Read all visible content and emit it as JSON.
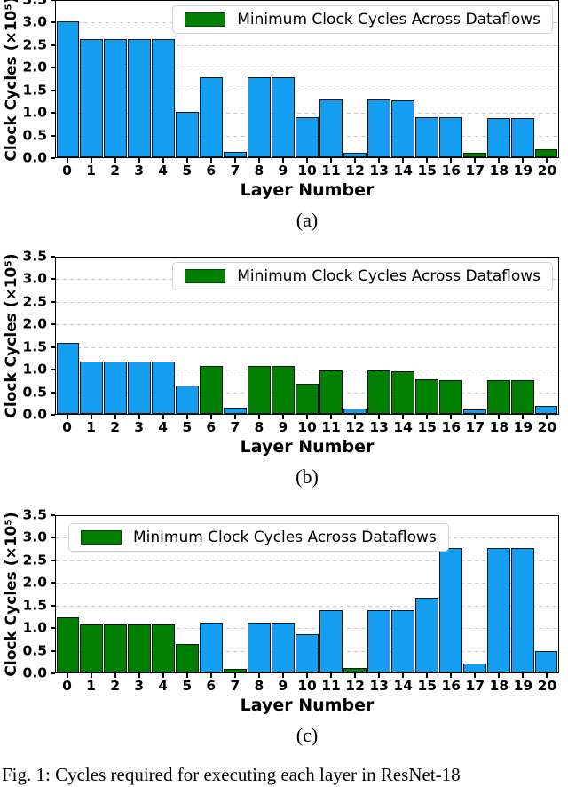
{
  "figure": {
    "caption": "Fig. 1: Cycles required for executing each layer in ResNet-18",
    "ylabel": "Clock Cycles (×10⁵)",
    "xlabel": "Layer Number",
    "legend_label": "Minimum Clock Cycles Across Dataflows",
    "yticks": [
      "3.5",
      "3.0",
      "2.5",
      "2.0",
      "1.5",
      "1.0",
      "0.5",
      "0.0"
    ],
    "colors": {
      "bar_blue": "#149ef2",
      "bar_green": "#008000",
      "bar_edge": "#141414",
      "legend_swatch": "#008000",
      "legend_swatch_border": "#004d00",
      "grid": "#c6c6c6"
    }
  },
  "chart_data": [
    {
      "id": "a",
      "type": "bar",
      "subcaption": "(a)",
      "title": "",
      "xlabel": "Layer Number",
      "ylabel": "Clock Cycles (×10⁵)",
      "ylim": [
        0,
        3.5
      ],
      "ytick_step": 0.5,
      "grid": true,
      "legend": [
        "Minimum Clock Cycles Across Dataflows"
      ],
      "legend_position": "top-right",
      "categories": [
        "0",
        "1",
        "2",
        "3",
        "4",
        "5",
        "6",
        "7",
        "8",
        "9",
        "10",
        "11",
        "12",
        "13",
        "14",
        "15",
        "16",
        "17",
        "18",
        "19",
        "20"
      ],
      "values": [
        3.0,
        2.61,
        2.61,
        2.61,
        2.61,
        1.0,
        1.77,
        0.12,
        1.77,
        1.77,
        0.88,
        1.27,
        0.1,
        1.27,
        1.26,
        0.88,
        0.88,
        0.1,
        0.87,
        0.87,
        0.18
      ],
      "bar_colors": [
        "blue",
        "blue",
        "blue",
        "blue",
        "blue",
        "blue",
        "blue",
        "blue",
        "blue",
        "blue",
        "blue",
        "blue",
        "blue",
        "blue",
        "blue",
        "blue",
        "blue",
        "green",
        "blue",
        "blue",
        "green"
      ]
    },
    {
      "id": "b",
      "type": "bar",
      "subcaption": "(b)",
      "title": "",
      "xlabel": "Layer Number",
      "ylabel": "Clock Cycles (×10⁵)",
      "ylim": [
        0,
        3.5
      ],
      "ytick_step": 0.5,
      "grid": true,
      "legend": [
        "Minimum Clock Cycles Across Dataflows"
      ],
      "legend_position": "top-right",
      "categories": [
        "0",
        "1",
        "2",
        "3",
        "4",
        "5",
        "6",
        "7",
        "8",
        "9",
        "10",
        "11",
        "12",
        "13",
        "14",
        "15",
        "16",
        "17",
        "18",
        "19",
        "20"
      ],
      "values": [
        1.58,
        1.17,
        1.17,
        1.17,
        1.17,
        0.63,
        1.06,
        0.13,
        1.06,
        1.06,
        0.67,
        0.96,
        0.11,
        0.96,
        0.95,
        0.76,
        0.74,
        0.1,
        0.74,
        0.74,
        0.18
      ],
      "bar_colors": [
        "blue",
        "blue",
        "blue",
        "blue",
        "blue",
        "blue",
        "green",
        "blue",
        "green",
        "green",
        "green",
        "green",
        "blue",
        "green",
        "green",
        "green",
        "green",
        "blue",
        "green",
        "green",
        "blue"
      ]
    },
    {
      "id": "c",
      "type": "bar",
      "subcaption": "(c)",
      "title": "",
      "xlabel": "Layer Number",
      "ylabel": "Clock Cycles (×10⁵)",
      "ylim": [
        0,
        3.5
      ],
      "ytick_step": 0.5,
      "grid": true,
      "legend": [
        "Minimum Clock Cycles Across Dataflows"
      ],
      "legend_position": "top-left",
      "categories": [
        "0",
        "1",
        "2",
        "3",
        "4",
        "5",
        "6",
        "7",
        "8",
        "9",
        "10",
        "11",
        "12",
        "13",
        "14",
        "15",
        "16",
        "17",
        "18",
        "19",
        "20"
      ],
      "values": [
        1.22,
        1.07,
        1.07,
        1.07,
        1.07,
        0.63,
        1.11,
        0.07,
        1.11,
        1.11,
        0.84,
        1.38,
        0.09,
        1.38,
        1.38,
        1.65,
        2.75,
        0.2,
        2.75,
        2.75,
        0.48
      ],
      "bar_colors": [
        "green",
        "green",
        "green",
        "green",
        "green",
        "green",
        "blue",
        "green",
        "blue",
        "blue",
        "blue",
        "blue",
        "green",
        "blue",
        "blue",
        "blue",
        "blue",
        "blue",
        "blue",
        "blue",
        "blue"
      ]
    }
  ]
}
